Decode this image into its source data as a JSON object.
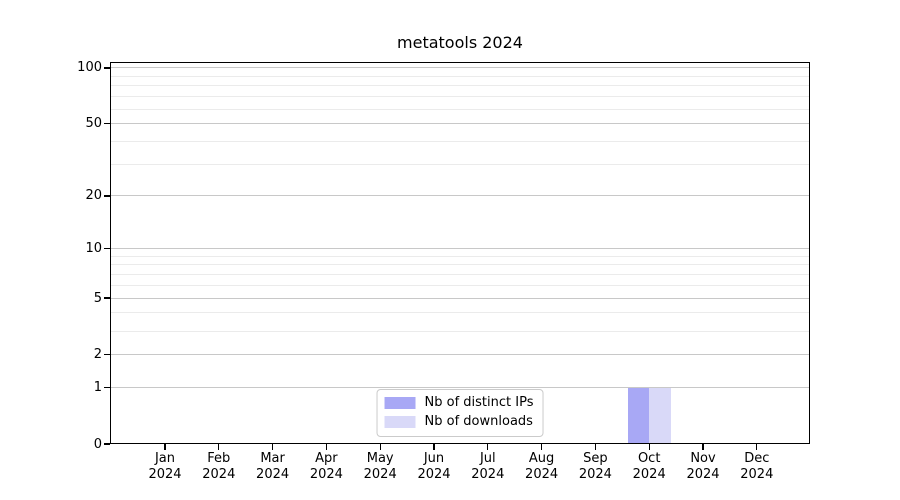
{
  "chart_data": {
    "type": "bar",
    "title": "metatools 2024",
    "categories": [
      "Jan 2024",
      "Feb 2024",
      "Mar 2024",
      "Apr 2024",
      "May 2024",
      "Jun 2024",
      "Jul 2024",
      "Aug 2024",
      "Sep 2024",
      "Oct 2024",
      "Nov 2024",
      "Dec 2024"
    ],
    "series": [
      {
        "name": "Nb of distinct IPs",
        "color": "#a8a8f5",
        "values": [
          0,
          0,
          0,
          0,
          0,
          0,
          0,
          0,
          0,
          1,
          0,
          0
        ]
      },
      {
        "name": "Nb of downloads",
        "color": "#d9d9f8",
        "values": [
          0,
          0,
          0,
          0,
          0,
          0,
          0,
          0,
          0,
          1,
          0,
          0
        ]
      }
    ],
    "xlabel": "",
    "ylabel": "",
    "yscale": "log1p",
    "ylim": [
      0,
      108
    ],
    "yticks": [
      0,
      1,
      2,
      5,
      10,
      20,
      50,
      100
    ],
    "minor_yticks": [
      3,
      4,
      6,
      7,
      8,
      9,
      30,
      40,
      60,
      70,
      80,
      90
    ],
    "grid": "both",
    "legend_position": "lower center",
    "colors": {
      "major_grid": "#c8c8c8",
      "minor_grid": "#ebebeb",
      "spine": "#000000",
      "background": "#ffffff",
      "bar_distinct_ips": "#a8a8f5",
      "bar_downloads": "#d9d9f8"
    }
  }
}
